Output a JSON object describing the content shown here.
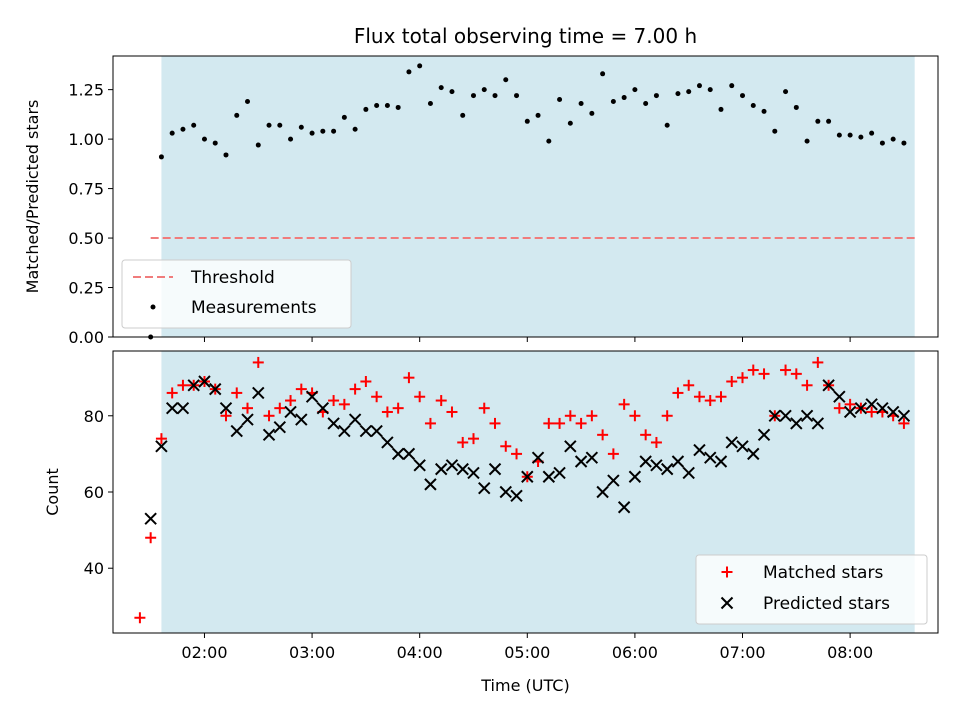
{
  "chart_data": [
    {
      "type": "scatter",
      "title": "Flux total observing time = 7.00 h",
      "xlabel": "",
      "ylabel": "Matched/Predicted stars",
      "ylim": [
        0,
        1.42
      ],
      "yticks": [
        "0.00",
        "0.25",
        "0.50",
        "0.75",
        "1.00",
        "1.25"
      ],
      "ytick_values": [
        0,
        0.25,
        0.5,
        0.75,
        1.0,
        1.25
      ],
      "xlim": [
        "01:09",
        "08:49"
      ],
      "shaded_span": [
        "01:36",
        "08:36"
      ],
      "shade_color": "#d3e9f0",
      "threshold": {
        "name": "Threshold",
        "value": 0.5,
        "x_from": "01:30",
        "x_to": "08:36",
        "color": "#f07c7c"
      },
      "legend": {
        "position": "lower-left",
        "entries": [
          "Threshold",
          "Measurements"
        ]
      },
      "series": [
        {
          "name": "Measurements",
          "color": "#000000",
          "x": [
            "01:30",
            "01:36",
            "01:42",
            "01:48",
            "01:54",
            "02:00",
            "02:06",
            "02:12",
            "02:18",
            "02:24",
            "02:30",
            "02:36",
            "02:42",
            "02:48",
            "02:54",
            "03:00",
            "03:06",
            "03:12",
            "03:18",
            "03:24",
            "03:30",
            "03:36",
            "03:42",
            "03:48",
            "03:54",
            "04:00",
            "04:06",
            "04:12",
            "04:18",
            "04:24",
            "04:30",
            "04:36",
            "04:42",
            "04:48",
            "04:54",
            "05:00",
            "05:06",
            "05:12",
            "05:18",
            "05:24",
            "05:30",
            "05:36",
            "05:42",
            "05:48",
            "05:54",
            "06:00",
            "06:06",
            "06:12",
            "06:18",
            "06:24",
            "06:30",
            "06:36",
            "06:42",
            "06:48",
            "06:54",
            "07:00",
            "07:06",
            "07:12",
            "07:18",
            "07:24",
            "07:30",
            "07:36",
            "07:42",
            "07:48",
            "07:54",
            "08:00",
            "08:06",
            "08:12",
            "08:18",
            "08:24",
            "08:30"
          ],
          "y": [
            0.0,
            0.91,
            1.03,
            1.05,
            1.07,
            1.0,
            0.98,
            0.92,
            1.12,
            1.19,
            0.97,
            1.07,
            1.07,
            1.0,
            1.06,
            1.03,
            1.04,
            1.04,
            1.11,
            1.05,
            1.15,
            1.17,
            1.17,
            1.16,
            1.34,
            1.37,
            1.18,
            1.26,
            1.24,
            1.12,
            1.22,
            1.25,
            1.22,
            1.3,
            1.22,
            1.09,
            1.12,
            0.99,
            1.2,
            1.08,
            1.18,
            1.13,
            1.33,
            1.19,
            1.21,
            1.25,
            1.18,
            1.22,
            1.07,
            1.23,
            1.24,
            1.27,
            1.25,
            1.15,
            1.27,
            1.22,
            1.17,
            1.14,
            1.04,
            1.24,
            1.16,
            0.99,
            1.09,
            1.09,
            1.02,
            1.02,
            1.01,
            1.03,
            0.98,
            1.0,
            0.98
          ]
        }
      ]
    },
    {
      "type": "scatter",
      "title": "",
      "xlabel": "Time (UTC)",
      "ylabel": "Count",
      "ylim": [
        23,
        97
      ],
      "yticks": [
        "40",
        "60",
        "80"
      ],
      "ytick_values": [
        40,
        60,
        80
      ],
      "xlim": [
        "01:09",
        "08:49"
      ],
      "xticks": [
        "02:00",
        "03:00",
        "04:00",
        "05:00",
        "06:00",
        "07:00",
        "08:00"
      ],
      "shaded_span": [
        "01:36",
        "08:36"
      ],
      "shade_color": "#d3e9f0",
      "legend": {
        "position": "lower-right",
        "entries": [
          "Matched stars",
          "Predicted stars"
        ]
      },
      "series": [
        {
          "name": "Matched stars",
          "marker": "plus",
          "color": "#ff0000",
          "x": [
            "01:24",
            "01:30",
            "01:36",
            "01:42",
            "01:48",
            "01:54",
            "02:00",
            "02:06",
            "02:12",
            "02:18",
            "02:24",
            "02:30",
            "02:36",
            "02:42",
            "02:48",
            "02:54",
            "03:00",
            "03:06",
            "03:12",
            "03:18",
            "03:24",
            "03:30",
            "03:36",
            "03:42",
            "03:48",
            "03:54",
            "04:00",
            "04:06",
            "04:12",
            "04:18",
            "04:24",
            "04:30",
            "04:36",
            "04:42",
            "04:48",
            "04:54",
            "05:00",
            "05:06",
            "05:12",
            "05:18",
            "05:24",
            "05:30",
            "05:36",
            "05:42",
            "05:48",
            "05:54",
            "06:00",
            "06:06",
            "06:12",
            "06:18",
            "06:24",
            "06:30",
            "06:36",
            "06:42",
            "06:48",
            "06:54",
            "07:00",
            "07:06",
            "07:12",
            "07:18",
            "07:24",
            "07:30",
            "07:36",
            "07:42",
            "07:48",
            "07:54",
            "08:00",
            "08:06",
            "08:12",
            "08:18",
            "08:24",
            "08:30"
          ],
          "y": [
            27,
            48,
            74,
            86,
            88,
            88,
            89,
            87,
            80,
            86,
            82,
            94,
            80,
            82,
            84,
            87,
            86,
            81,
            84,
            83,
            87,
            89,
            85,
            81,
            82,
            90,
            85,
            78,
            84,
            81,
            73,
            74,
            82,
            78,
            72,
            70,
            64,
            68,
            78,
            78,
            80,
            78,
            80,
            75,
            70,
            83,
            80,
            75,
            73,
            80,
            86,
            88,
            85,
            84,
            85,
            89,
            90,
            92,
            91,
            80,
            92,
            91,
            88,
            94,
            88,
            82,
            83,
            82,
            81,
            81,
            80,
            78
          ]
        },
        {
          "name": "Predicted stars",
          "marker": "x",
          "color": "#000000",
          "x": [
            "01:30",
            "01:36",
            "01:42",
            "01:48",
            "01:54",
            "02:00",
            "02:06",
            "02:12",
            "02:18",
            "02:24",
            "02:30",
            "02:36",
            "02:42",
            "02:48",
            "02:54",
            "03:00",
            "03:06",
            "03:12",
            "03:18",
            "03:24",
            "03:30",
            "03:36",
            "03:42",
            "03:48",
            "03:54",
            "04:00",
            "04:06",
            "04:12",
            "04:18",
            "04:24",
            "04:30",
            "04:36",
            "04:42",
            "04:48",
            "04:54",
            "05:00",
            "05:06",
            "05:12",
            "05:18",
            "05:24",
            "05:30",
            "05:36",
            "05:42",
            "05:48",
            "05:54",
            "06:00",
            "06:06",
            "06:12",
            "06:18",
            "06:24",
            "06:30",
            "06:36",
            "06:42",
            "06:48",
            "06:54",
            "07:00",
            "07:06",
            "07:12",
            "07:18",
            "07:24",
            "07:30",
            "07:36",
            "07:42",
            "07:48",
            "07:54",
            "08:00",
            "08:06",
            "08:12",
            "08:18",
            "08:24",
            "08:30"
          ],
          "y": [
            53,
            72,
            82,
            82,
            88,
            89,
            87,
            82,
            76,
            79,
            86,
            75,
            77,
            81,
            79,
            85,
            82,
            78,
            76,
            79,
            76,
            76,
            73,
            70,
            70,
            67,
            62,
            66,
            67,
            66,
            65,
            61,
            66,
            60,
            59,
            64,
            69,
            64,
            65,
            72,
            68,
            69,
            60,
            63,
            56,
            64,
            68,
            67,
            66,
            68,
            65,
            71,
            69,
            68,
            73,
            72,
            70,
            75,
            80,
            80,
            78,
            80,
            78,
            88,
            85,
            81,
            82,
            83,
            82,
            81,
            80
          ]
        }
      ]
    }
  ]
}
